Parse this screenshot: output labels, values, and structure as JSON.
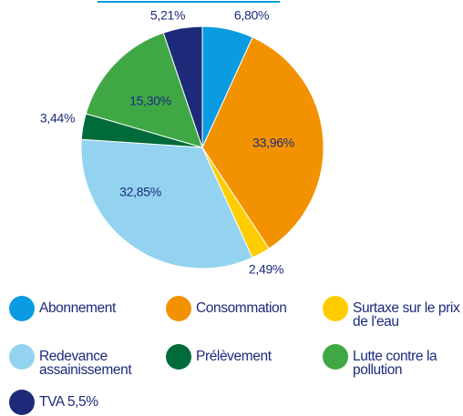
{
  "chart_data": {
    "type": "pie",
    "categories": [
      "Abonnement",
      "Consommation",
      "Surtaxe sur le prix de l'eau",
      "Redevance assainissement",
      "Prélèvement",
      "Lutte contre la pollution",
      "TVA 5,5%"
    ],
    "values": [
      6.8,
      33.96,
      2.49,
      32.85,
      3.44,
      15.3,
      5.21
    ],
    "value_labels": [
      "6,80%",
      "33,96%",
      "2,49%",
      "32,85%",
      "3,44%",
      "15,30%",
      "5,21%"
    ],
    "colors": [
      "#0a9be0",
      "#f39200",
      "#ffcc00",
      "#93d3f0",
      "#006b3a",
      "#3fa845",
      "#1d2a7a"
    ]
  }
}
